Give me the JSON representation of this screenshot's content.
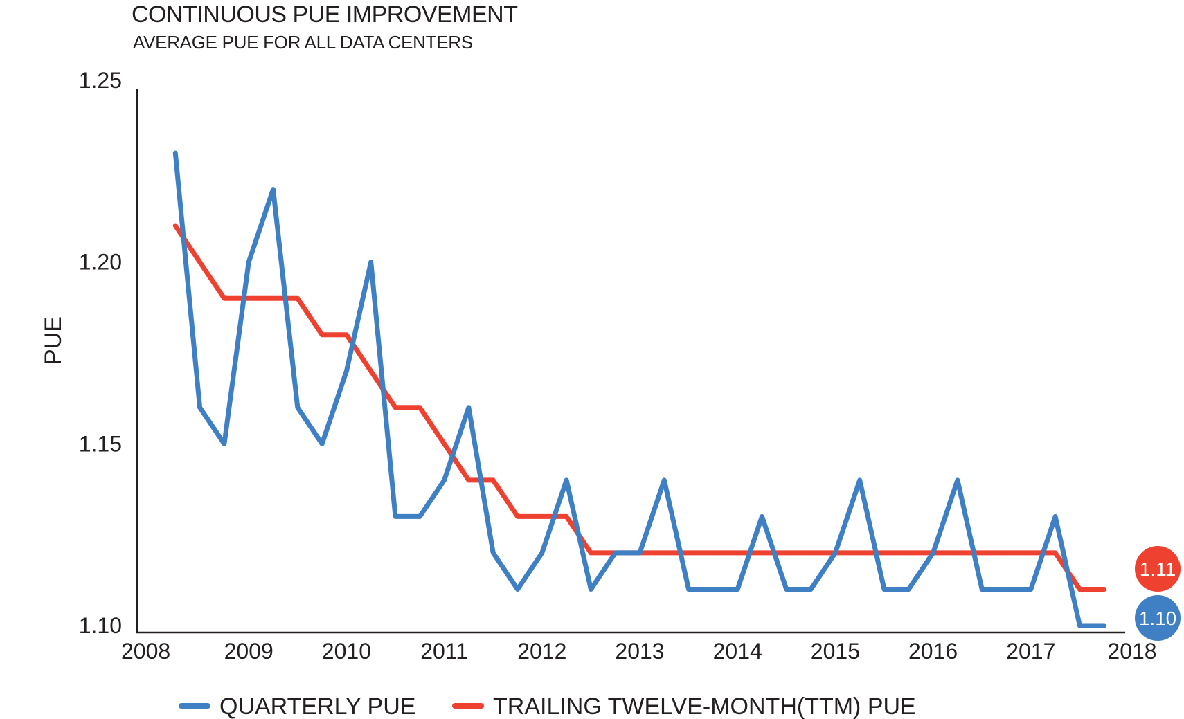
{
  "chart_data": {
    "type": "line",
    "title": "CONTINUOUS PUE IMPROVEMENT",
    "subtitle": "AVERAGE PUE FOR ALL DATA CENTERS",
    "xlabel": "",
    "ylabel": "PUE",
    "xlim": [
      2008,
      2018
    ],
    "ylim": [
      1.1,
      1.25
    ],
    "x_ticks": [
      "2008",
      "2009",
      "2010",
      "2011",
      "2012",
      "2013",
      "2014",
      "2015",
      "2016",
      "2017",
      "2018"
    ],
    "y_ticks": [
      "1.10",
      "1.15",
      "1.20",
      "1.25"
    ],
    "grid": false,
    "legend_position": "bottom",
    "x": [
      2008.25,
      2008.5,
      2008.75,
      2009.0,
      2009.25,
      2009.5,
      2009.75,
      2010.0,
      2010.25,
      2010.5,
      2010.75,
      2011.0,
      2011.25,
      2011.5,
      2011.75,
      2012.0,
      2012.25,
      2012.5,
      2012.75,
      2013.0,
      2013.25,
      2013.5,
      2013.75,
      2014.0,
      2014.25,
      2014.5,
      2014.75,
      2015.0,
      2015.25,
      2015.5,
      2015.75,
      2016.0,
      2016.25,
      2016.5,
      2016.75,
      2017.0,
      2017.25,
      2017.5,
      2017.75,
      2018.0
    ],
    "series": [
      {
        "name": "QUARTERLY PUE",
        "color": "#3f7fc4",
        "values": [
          1.23,
          1.16,
          1.15,
          1.2,
          1.22,
          1.16,
          1.15,
          1.17,
          1.2,
          1.13,
          1.13,
          1.14,
          1.16,
          1.12,
          1.11,
          1.12,
          1.14,
          1.11,
          1.12,
          1.12,
          1.14,
          1.11,
          1.11,
          1.11,
          1.13,
          1.11,
          1.11,
          1.12,
          1.14,
          1.11,
          1.11,
          1.12,
          1.14,
          1.11,
          1.11,
          1.11,
          1.13,
          1.1,
          1.1,
          null
        ]
      },
      {
        "name": "TRAILING TWELVE-MONTH(TTM) PUE",
        "color": "#ee4130",
        "values": [
          1.21,
          1.2,
          1.19,
          1.19,
          1.19,
          1.19,
          1.18,
          1.18,
          1.17,
          1.16,
          1.16,
          1.15,
          1.14,
          1.14,
          1.13,
          1.13,
          1.13,
          1.12,
          1.12,
          1.12,
          1.12,
          1.12,
          1.12,
          1.12,
          1.12,
          1.12,
          1.12,
          1.12,
          1.12,
          1.12,
          1.12,
          1.12,
          1.12,
          1.12,
          1.12,
          1.12,
          1.12,
          1.11,
          1.11,
          null
        ]
      }
    ],
    "annotations": [
      {
        "series": "TRAILING TWELVE-MONTH(TTM) PUE",
        "label": "1.11",
        "color": "#ee4130"
      },
      {
        "series": "QUARTERLY PUE",
        "label": "1.10",
        "color": "#3f7fc4"
      }
    ]
  }
}
